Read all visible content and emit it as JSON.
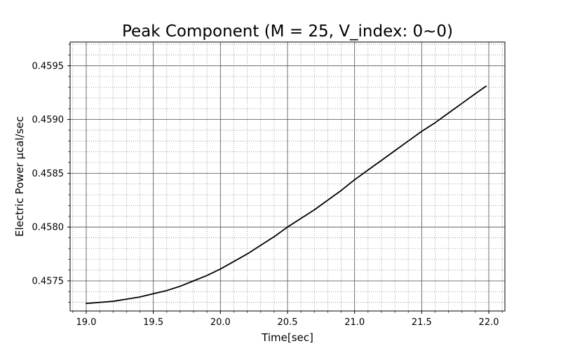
{
  "chart_data": {
    "type": "line",
    "title": "Peak Component (M = 25, V_index: 0~0)",
    "xlabel": "Time[sec]",
    "ylabel": "Electric Power μcal/sec",
    "xlim": [
      18.88,
      22.12
    ],
    "ylim": [
      0.45722,
      0.45972
    ],
    "xticks": [
      19.0,
      19.5,
      20.0,
      20.5,
      21.0,
      21.5,
      22.0
    ],
    "yticks": [
      0.4575,
      0.458,
      0.4585,
      0.459,
      0.4595
    ],
    "grid": {
      "major": true,
      "minor": true
    },
    "series": [
      {
        "color": "#000000",
        "x": [
          19.0,
          19.1,
          19.2,
          19.3,
          19.4,
          19.5,
          19.6,
          19.7,
          19.8,
          19.9,
          20.0,
          20.1,
          20.2,
          20.3,
          20.4,
          20.5,
          20.6,
          20.7,
          20.8,
          20.9,
          21.0,
          21.1,
          21.2,
          21.3,
          21.4,
          21.5,
          21.6,
          21.7,
          21.8,
          21.9,
          21.98
        ],
        "y": [
          0.45729,
          0.4573,
          0.45731,
          0.45733,
          0.45735,
          0.45738,
          0.45741,
          0.45745,
          0.4575,
          0.45755,
          0.45761,
          0.45768,
          0.45775,
          0.45783,
          0.45791,
          0.458,
          0.45808,
          0.45816,
          0.45825,
          0.45834,
          0.45844,
          0.45853,
          0.45862,
          0.45871,
          0.4588,
          0.45889,
          0.45897,
          0.45906,
          0.45915,
          0.45924,
          0.45931
        ]
      }
    ]
  }
}
